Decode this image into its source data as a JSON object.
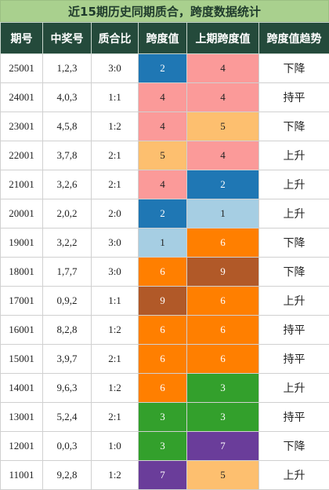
{
  "title": "近15期历史同期质合，跨度数据统计",
  "headers": [
    "期号",
    "中奖号",
    "质合比",
    "跨度值",
    "上期跨度值",
    "跨度值趋势"
  ],
  "colors": {
    "2": "#1f77b4",
    "1": "#a6cee3",
    "4": "#fb9a99",
    "5": "#fdbf6f",
    "6": "#ff7f00",
    "9": "#b15928",
    "3": "#33a02c",
    "7": "#6a3d9a"
  },
  "rows": [
    {
      "period": "25001",
      "numbers": "1,2,3",
      "ratio": "3:0",
      "span": "2",
      "prev_span": "4",
      "trend": "下降"
    },
    {
      "period": "24001",
      "numbers": "4,0,3",
      "ratio": "1:1",
      "span": "4",
      "prev_span": "4",
      "trend": "持平"
    },
    {
      "period": "23001",
      "numbers": "4,5,8",
      "ratio": "1:2",
      "span": "4",
      "prev_span": "5",
      "trend": "下降"
    },
    {
      "period": "22001",
      "numbers": "3,7,8",
      "ratio": "2:1",
      "span": "5",
      "prev_span": "4",
      "trend": "上升"
    },
    {
      "period": "21001",
      "numbers": "3,2,6",
      "ratio": "2:1",
      "span": "4",
      "prev_span": "2",
      "trend": "上升"
    },
    {
      "period": "20001",
      "numbers": "2,0,2",
      "ratio": "2:0",
      "span": "2",
      "prev_span": "1",
      "trend": "上升"
    },
    {
      "period": "19001",
      "numbers": "3,2,2",
      "ratio": "3:0",
      "span": "1",
      "prev_span": "6",
      "trend": "下降"
    },
    {
      "period": "18001",
      "numbers": "1,7,7",
      "ratio": "3:0",
      "span": "6",
      "prev_span": "9",
      "trend": "下降"
    },
    {
      "period": "17001",
      "numbers": "0,9,2",
      "ratio": "1:1",
      "span": "9",
      "prev_span": "6",
      "trend": "上升"
    },
    {
      "period": "16001",
      "numbers": "8,2,8",
      "ratio": "1:2",
      "span": "6",
      "prev_span": "6",
      "trend": "持平"
    },
    {
      "period": "15001",
      "numbers": "3,9,7",
      "ratio": "2:1",
      "span": "6",
      "prev_span": "6",
      "trend": "持平"
    },
    {
      "period": "14001",
      "numbers": "9,6,3",
      "ratio": "1:2",
      "span": "6",
      "prev_span": "3",
      "trend": "上升"
    },
    {
      "period": "13001",
      "numbers": "5,2,4",
      "ratio": "2:1",
      "span": "3",
      "prev_span": "3",
      "trend": "持平"
    },
    {
      "period": "12001",
      "numbers": "0,0,3",
      "ratio": "1:0",
      "span": "3",
      "prev_span": "7",
      "trend": "下降"
    },
    {
      "period": "11001",
      "numbers": "9,2,8",
      "ratio": "1:2",
      "span": "7",
      "prev_span": "5",
      "trend": "上升"
    }
  ]
}
